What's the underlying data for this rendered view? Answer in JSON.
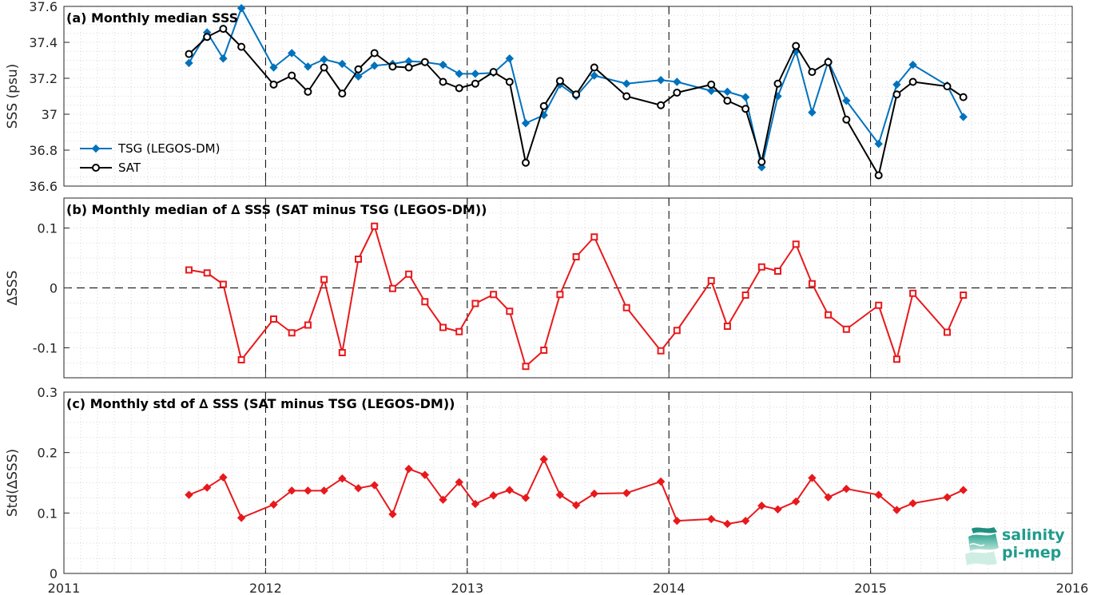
{
  "logo": {
    "line1": "salinity",
    "line2": "pi-mep"
  },
  "colors": {
    "tsg": "#0072BD",
    "sat": "#000000",
    "delta": "#E8191C"
  },
  "x_axis": {
    "min": 2011,
    "max": 2016,
    "ticks": [
      "2011",
      "2012",
      "2013",
      "2014",
      "2015",
      "2016"
    ]
  },
  "chart_data": [
    {
      "type": "line",
      "title": "(a) Monthly median SSS",
      "ylabel": "SSS (psu)",
      "ylim": [
        36.6,
        37.6
      ],
      "yticks": [
        "36.6",
        "36.8",
        "37",
        "37.2",
        "37.4",
        "37.6"
      ],
      "grid": true,
      "legend_position": "lower-left",
      "x": [
        2011.62,
        2011.71,
        2011.79,
        2011.88,
        2012.04,
        2012.13,
        2012.21,
        2012.29,
        2012.38,
        2012.46,
        2012.54,
        2012.63,
        2012.71,
        2012.79,
        2012.88,
        2012.96,
        2013.04,
        2013.13,
        2013.21,
        2013.29,
        2013.38,
        2013.46,
        2013.54,
        2013.63,
        2013.79,
        2013.96,
        2014.04,
        2014.21,
        2014.29,
        2014.38,
        2014.46,
        2014.54,
        2014.63,
        2014.71,
        2014.79,
        2014.88,
        2015.04,
        2015.13,
        2015.21,
        2015.38,
        2015.46
      ],
      "series": [
        {
          "name": "TSG (LEGOS-DM)",
          "marker": "diamond",
          "values": [
            37.285,
            37.455,
            37.31,
            37.59,
            37.26,
            37.34,
            37.265,
            37.305,
            37.28,
            37.21,
            37.27,
            37.28,
            37.295,
            37.29,
            37.275,
            37.225,
            37.225,
            37.23,
            37.31,
            36.95,
            36.995,
            37.165,
            37.1,
            37.215,
            37.17,
            37.19,
            37.18,
            37.13,
            37.125,
            37.095,
            36.705,
            37.1,
            37.35,
            37.01,
            37.295,
            37.075,
            36.835,
            37.165,
            37.275,
            37.16,
            36.985
          ]
        },
        {
          "name": "SAT",
          "marker": "circle",
          "values": [
            37.335,
            37.43,
            37.475,
            37.375,
            37.165,
            37.215,
            37.125,
            37.26,
            37.115,
            37.25,
            37.34,
            37.265,
            37.26,
            37.29,
            37.18,
            37.145,
            37.17,
            37.235,
            37.18,
            36.73,
            37.045,
            37.185,
            37.11,
            37.26,
            37.1,
            37.05,
            37.12,
            37.165,
            37.075,
            37.03,
            36.735,
            37.17,
            37.38,
            37.235,
            37.29,
            36.97,
            36.66,
            37.11,
            37.18,
            37.155,
            37.095
          ]
        }
      ]
    },
    {
      "type": "line",
      "title": "(b) Monthly median of ∆ SSS (SAT minus TSG (LEGOS-DM))",
      "ylabel": "∆SSS",
      "ylim": [
        -0.15,
        0.15
      ],
      "yticks": [
        "-0.1",
        "0",
        "0.1"
      ],
      "grid": true,
      "zero_line": true,
      "x": [
        2011.62,
        2011.71,
        2011.79,
        2011.88,
        2012.04,
        2012.13,
        2012.21,
        2012.29,
        2012.38,
        2012.46,
        2012.54,
        2012.63,
        2012.71,
        2012.79,
        2012.88,
        2012.96,
        2013.04,
        2013.13,
        2013.21,
        2013.29,
        2013.38,
        2013.46,
        2013.54,
        2013.63,
        2013.79,
        2013.96,
        2014.04,
        2014.21,
        2014.29,
        2014.38,
        2014.46,
        2014.54,
        2014.63,
        2014.71,
        2014.79,
        2014.88,
        2015.04,
        2015.13,
        2015.21,
        2015.38,
        2015.46
      ],
      "series": [
        {
          "marker": "square",
          "values": [
            0.03,
            0.025,
            0.006,
            -0.12,
            -0.052,
            -0.075,
            -0.062,
            0.014,
            -0.108,
            0.048,
            0.103,
            -0.001,
            0.023,
            -0.023,
            -0.066,
            -0.073,
            -0.026,
            -0.011,
            -0.039,
            -0.131,
            -0.104,
            -0.011,
            0.052,
            0.085,
            -0.033,
            -0.105,
            -0.071,
            0.012,
            -0.064,
            -0.012,
            0.035,
            0.028,
            0.073,
            0.007,
            -0.045,
            -0.069,
            -0.029,
            -0.119,
            -0.009,
            -0.074,
            -0.012
          ]
        }
      ]
    },
    {
      "type": "line",
      "title": "(c) Monthly std of ∆ SSS (SAT minus TSG (LEGOS-DM))",
      "ylabel": "Std(∆SSS)",
      "ylim": [
        0,
        0.3
      ],
      "yticks": [
        "0",
        "0.1",
        "0.2",
        "0.3"
      ],
      "grid": true,
      "x": [
        2011.62,
        2011.71,
        2011.79,
        2011.88,
        2012.04,
        2012.13,
        2012.21,
        2012.29,
        2012.38,
        2012.46,
        2012.54,
        2012.63,
        2012.71,
        2012.79,
        2012.88,
        2012.96,
        2013.04,
        2013.13,
        2013.21,
        2013.29,
        2013.38,
        2013.46,
        2013.54,
        2013.63,
        2013.79,
        2013.96,
        2014.04,
        2014.21,
        2014.29,
        2014.38,
        2014.46,
        2014.54,
        2014.63,
        2014.71,
        2014.79,
        2014.88,
        2015.04,
        2015.13,
        2015.21,
        2015.38,
        2015.46
      ],
      "series": [
        {
          "marker": "diamond",
          "values": [
            0.13,
            0.142,
            0.159,
            0.092,
            0.114,
            0.137,
            0.137,
            0.137,
            0.157,
            0.141,
            0.146,
            0.098,
            0.173,
            0.163,
            0.122,
            0.151,
            0.115,
            0.129,
            0.138,
            0.125,
            0.189,
            0.13,
            0.113,
            0.132,
            0.133,
            0.152,
            0.087,
            0.09,
            0.082,
            0.087,
            0.112,
            0.106,
            0.119,
            0.158,
            0.126,
            0.14,
            0.13,
            0.105,
            0.116,
            0.126,
            0.138
          ]
        }
      ]
    }
  ]
}
